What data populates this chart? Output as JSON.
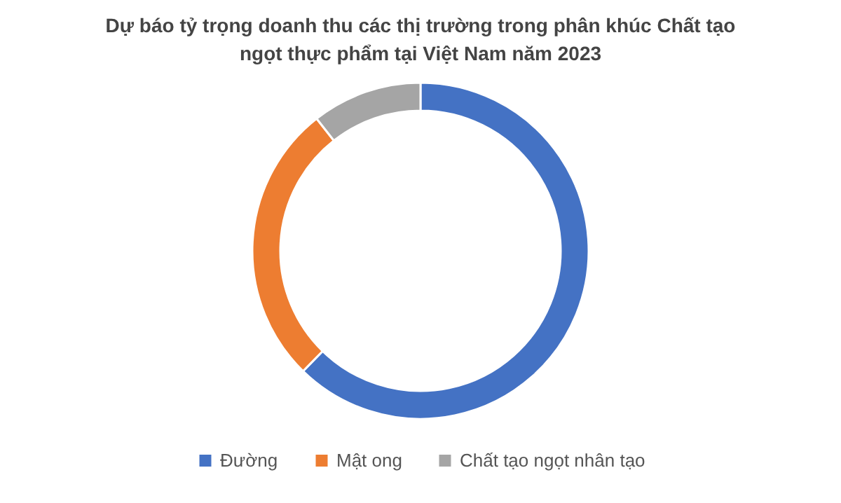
{
  "chart_data": {
    "type": "donut",
    "title": "Dự báo tỷ trọng doanh thu các thị trường trong phân khúc Chất tạo ngọt thực phẩm tại Việt Nam năm 2023",
    "categories": [
      "Đường",
      "Mật ong",
      "Chất tạo ngọt nhân tạo"
    ],
    "values": [
      62.3,
      27.1,
      10.6
    ],
    "colors": [
      "#4472c4",
      "#ed7d31",
      "#a5a5a5"
    ],
    "legend": "bottom"
  }
}
